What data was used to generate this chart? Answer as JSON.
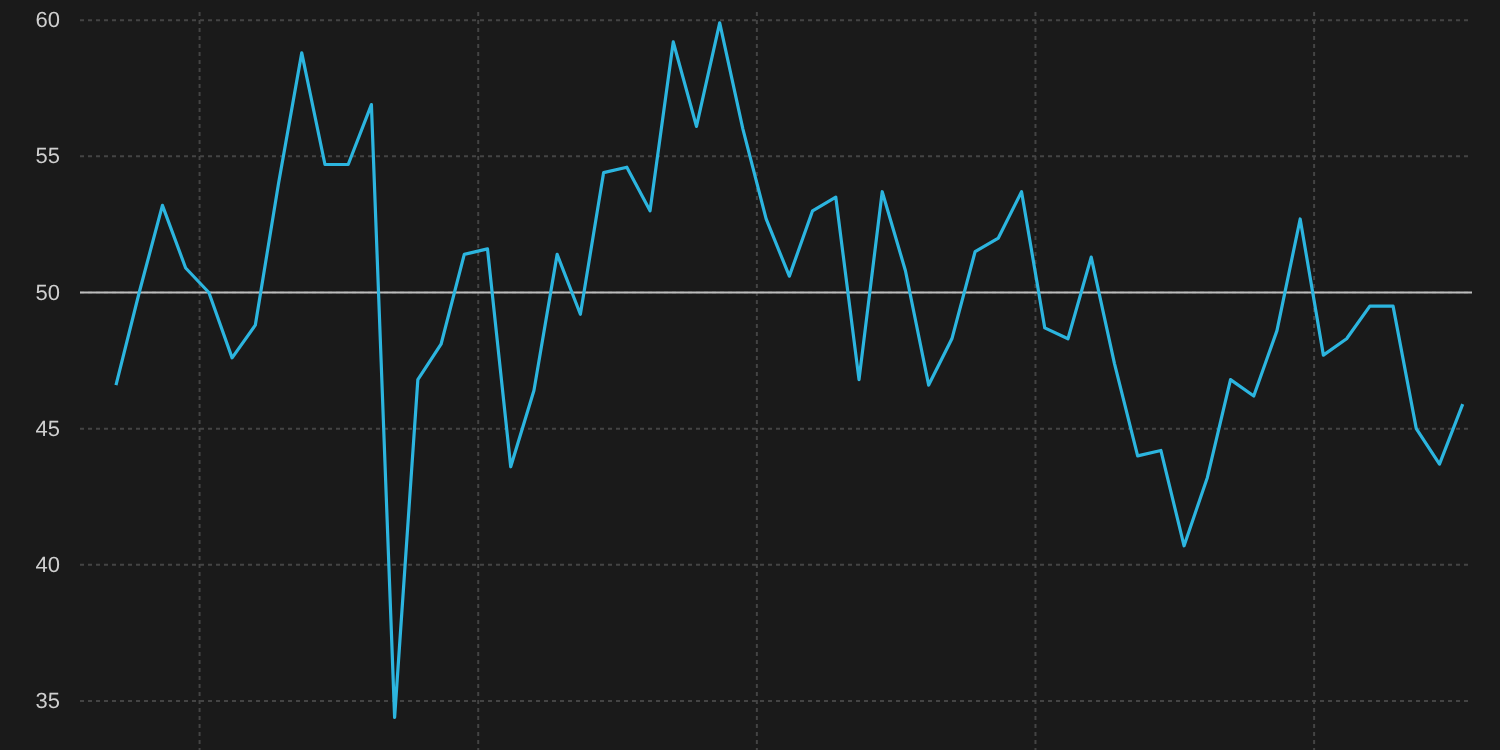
{
  "chart_data": {
    "type": "line",
    "categories": [
      null,
      null,
      null,
      null,
      null,
      null,
      null,
      null,
      null,
      null,
      null,
      null,
      null,
      null,
      null,
      null,
      null,
      null,
      null,
      null,
      null,
      null,
      null,
      null,
      null,
      null,
      null,
      null,
      null,
      null,
      null,
      null,
      null,
      null,
      null,
      null,
      null,
      null,
      null,
      null,
      null,
      null,
      null,
      null,
      null,
      null,
      null,
      null,
      null,
      null,
      null,
      null,
      null,
      null,
      null,
      null,
      null,
      null,
      null
    ],
    "series": [
      {
        "color": "#2cb5df",
        "values": [
          46.6,
          50.0,
          53.2,
          50.9,
          50.0,
          47.6,
          48.8,
          54.0,
          58.8,
          54.7,
          54.7,
          56.9,
          34.4,
          46.8,
          48.1,
          51.4,
          51.6,
          43.6,
          46.4,
          51.4,
          49.2,
          54.4,
          54.6,
          53.0,
          59.2,
          56.1,
          59.9,
          56.0,
          52.7,
          50.6,
          53.0,
          53.5,
          46.8,
          53.7,
          50.8,
          46.6,
          48.3,
          51.5,
          52.0,
          53.7,
          48.7,
          48.3,
          51.3,
          47.4,
          44.0,
          44.2,
          40.7,
          43.2,
          46.8,
          46.2,
          48.6,
          52.7,
          47.7,
          48.3,
          49.5,
          49.5,
          45.0,
          43.7,
          45.9
        ]
      }
    ],
    "ylim": [
      33.2,
      60.3
    ],
    "yticks": [
      35,
      40,
      45,
      50,
      55,
      60
    ],
    "grid": true,
    "legend": false,
    "marker": "none",
    "line_style": "solid",
    "ref_lines": [
      {
        "axis": "y",
        "value": 50,
        "color": "#bdbdbd"
      }
    ]
  }
}
